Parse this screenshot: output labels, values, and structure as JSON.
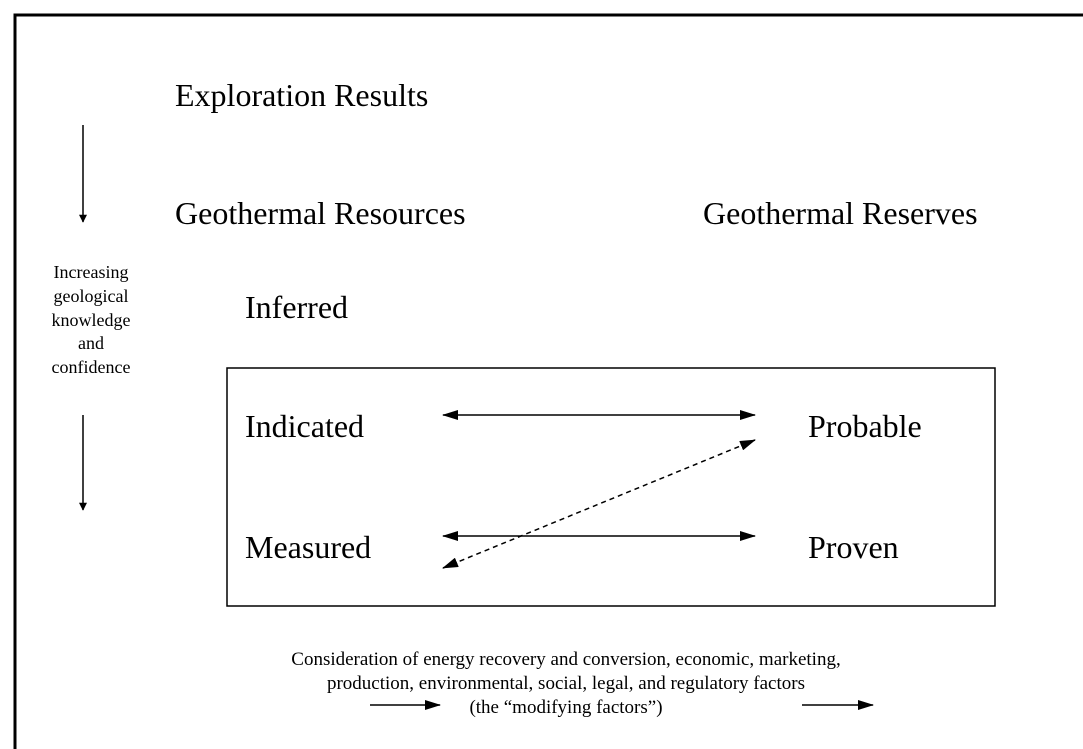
{
  "headings": {
    "exploration": "Exploration Results",
    "resources": "Geothermal Resources",
    "reserves": "Geothermal Reserves"
  },
  "side_label": [
    "Increasing",
    "geological",
    "knowledge",
    "and",
    "confidence"
  ],
  "resource_levels": {
    "inferred": "Inferred",
    "indicated": "Indicated",
    "measured": "Measured"
  },
  "reserve_levels": {
    "probable": "Probable",
    "proven": "Proven"
  },
  "footnote": [
    "Consideration of energy recovery and conversion, economic, marketing,",
    "production, environmental, social, legal, and regulatory factors",
    "(the “modifying factors”)"
  ]
}
